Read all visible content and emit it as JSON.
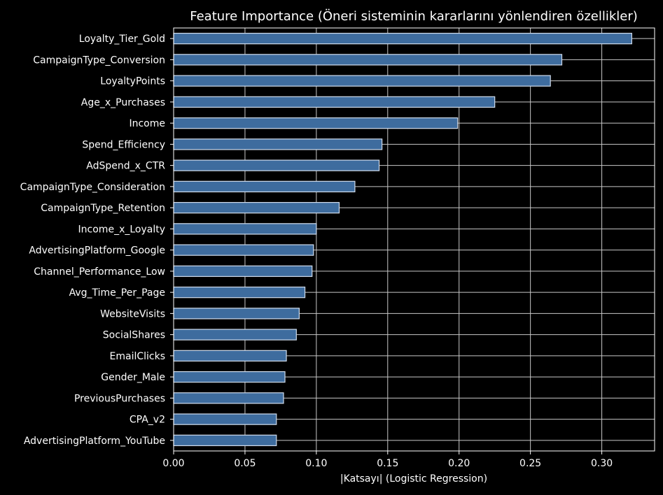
{
  "chart_data": {
    "type": "bar",
    "orientation": "horizontal",
    "title": "Feature Importance (Öneri sisteminin kararlarını yönlendiren özellikler)",
    "xlabel": "|Katsayı| (Logistic Regression)",
    "ylabel": "",
    "xlim": [
      0.0,
      0.337
    ],
    "xticks": [
      0.0,
      0.05,
      0.1,
      0.15,
      0.2,
      0.25,
      0.3
    ],
    "xtick_labels": [
      "0.00",
      "0.05",
      "0.10",
      "0.15",
      "0.20",
      "0.25",
      "0.30"
    ],
    "grid": true,
    "categories": [
      "Loyalty_Tier_Gold",
      "CampaignType_Conversion",
      "LoyaltyPoints",
      "Age_x_Purchases",
      "Income",
      "Spend_Efficiency",
      "AdSpend_x_CTR",
      "CampaignType_Consideration",
      "CampaignType_Retention",
      "Income_x_Loyalty",
      "AdvertisingPlatform_Google",
      "Channel_Performance_Low",
      "Avg_Time_Per_Page",
      "WebsiteVisits",
      "SocialShares",
      "EmailClicks",
      "Gender_Male",
      "PreviousPurchases",
      "CPA_v2",
      "AdvertisingPlatform_YouTube"
    ],
    "values": [
      0.321,
      0.272,
      0.264,
      0.225,
      0.199,
      0.146,
      0.144,
      0.127,
      0.116,
      0.1,
      0.098,
      0.097,
      0.092,
      0.088,
      0.086,
      0.079,
      0.078,
      0.077,
      0.072,
      0.072
    ],
    "colors": {
      "background": "#000000",
      "bar_fill": "#3e6c9e",
      "bar_edge": "#d0dcec",
      "grid": "#c8c8c8",
      "spine": "#ffffff",
      "text": "#ffffff"
    }
  }
}
